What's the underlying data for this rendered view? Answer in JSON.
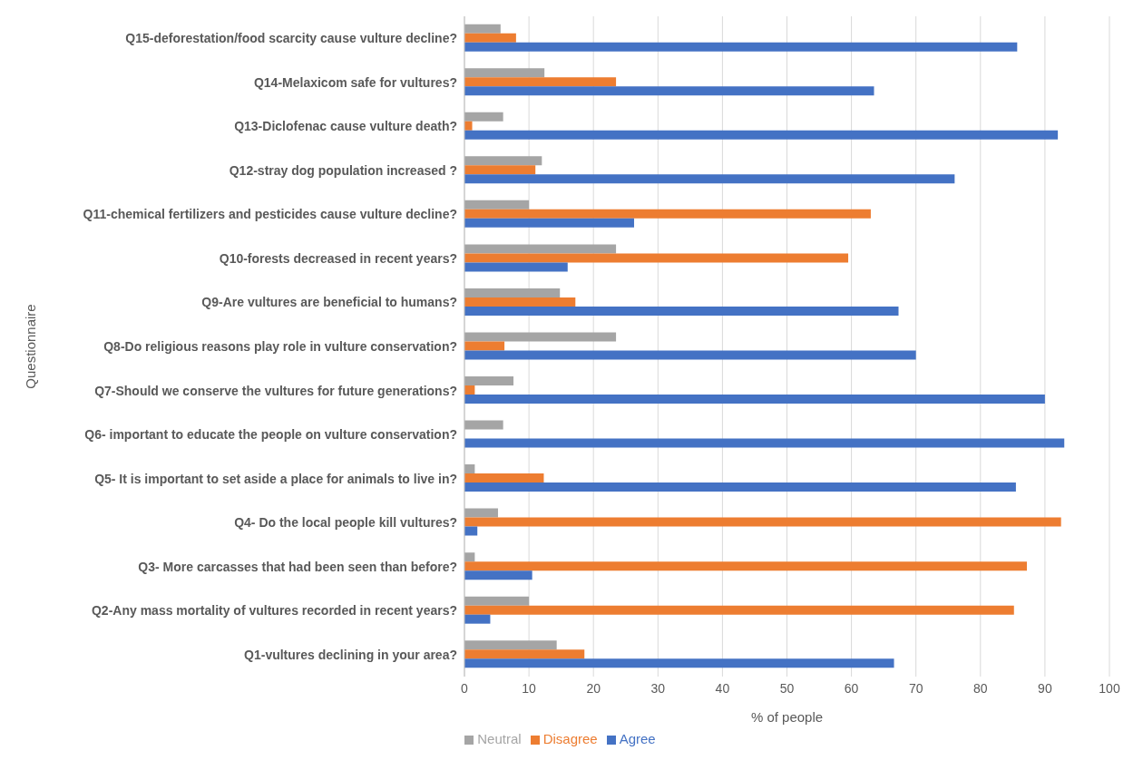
{
  "chart_data": {
    "type": "bar",
    "orientation": "horizontal",
    "xlabel": "% of people",
    "ylabel": "Questionnaire",
    "categories": [
      "Q15-deforestation/food scarcity cause vulture decline?",
      "Q14-Melaxicom safe for vultures?",
      "Q13-Diclofenac  cause vulture death?",
      "Q12-stray dog population increased ?",
      "Q11-chemical fertilizers and pesticides cause vulture decline?",
      "Q10-forests  decreased in recent years?",
      "Q9-Are vultures are beneficial to humans?",
      "Q8-Do religious reasons play role in vulture conservation?",
      "Q7-Should we conserve the vultures for future generations?",
      "Q6- important to educate the people on vulture conservation?",
      "Q5- It is important to set aside a place for animals to live in?",
      "Q4- Do the local people kill vultures?",
      "Q3- More carcasses that had been seen than before?",
      "Q2-Any mass mortality of vultures recorded in recent years?",
      "Q1-vultures   declining in your  area?"
    ],
    "series": [
      {
        "name": "Neutral",
        "color": "#a5a5a5",
        "values": [
          5.6,
          12.4,
          6,
          12,
          10,
          23.5,
          14.8,
          23.5,
          7.6,
          6,
          1.6,
          5.2,
          1.6,
          10,
          14.3
        ]
      },
      {
        "name": "Disagree",
        "color": "#ed7d31",
        "values": [
          8,
          23.5,
          1.2,
          11,
          63,
          59.5,
          17.2,
          6.2,
          1.6,
          null,
          12.3,
          92.5,
          87.2,
          85.2,
          18.6
        ]
      },
      {
        "name": "Agree",
        "color": "#4472c4",
        "values": [
          85.7,
          63.5,
          92,
          76,
          26.3,
          16,
          67.3,
          70,
          90,
          93,
          85.5,
          2,
          10.5,
          4,
          66.6
        ]
      }
    ],
    "xlim": [
      0,
      100
    ],
    "xticks": [
      0,
      10,
      20,
      30,
      40,
      50,
      60,
      70,
      80,
      90,
      100
    ],
    "grid": "x",
    "legend": "bottom"
  }
}
